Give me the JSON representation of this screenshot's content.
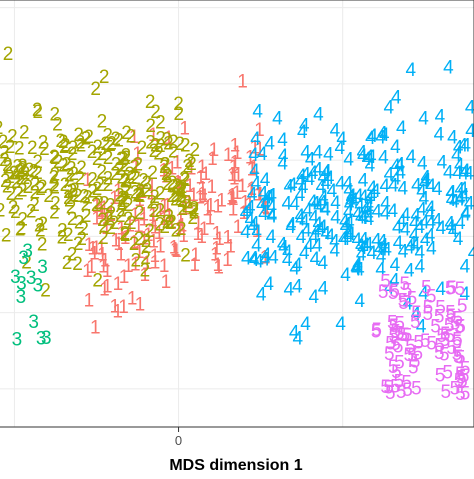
{
  "chart_data": {
    "type": "scatter",
    "marker": "text-label",
    "xlabel": "MDS dimension 1",
    "ylabel": "",
    "x_ticks": [
      0
    ],
    "xlim": [
      -0.55,
      0.9
    ],
    "ylim": [
      -0.5,
      0.62
    ],
    "grid": true,
    "legend": "none",
    "series": [
      {
        "label": "1",
        "color": "#F8766D",
        "n_points": 160,
        "x_range": [
          -0.3,
          0.28
        ],
        "y_range": [
          -0.35,
          0.55
        ]
      },
      {
        "label": "2",
        "color": "#A3A500",
        "n_points": 260,
        "x_range": [
          -0.55,
          0.1
        ],
        "y_range": [
          -0.15,
          0.38
        ]
      },
      {
        "label": "3",
        "color": "#00BF7D",
        "n_points": 12,
        "x_range": [
          -0.55,
          -0.38
        ],
        "y_range": [
          -0.28,
          -0.03
        ]
      },
      {
        "label": "4",
        "color": "#00B0F6",
        "n_points": 290,
        "x_range": [
          0.18,
          0.9
        ],
        "y_range": [
          -0.3,
          0.3
        ]
      },
      {
        "label": "5",
        "color": "#E76BF3",
        "n_points": 90,
        "x_range": [
          0.55,
          0.9
        ],
        "y_range": [
          -0.45,
          -0.05
        ]
      }
    ]
  }
}
